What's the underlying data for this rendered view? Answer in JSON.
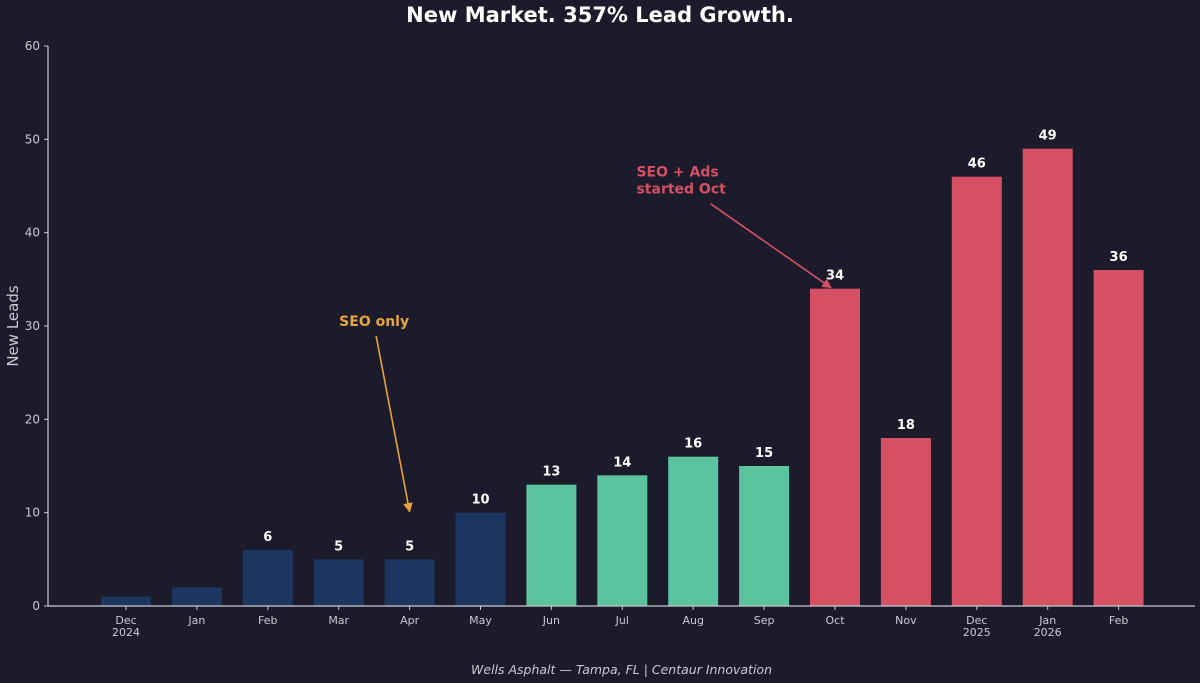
{
  "chart_data": {
    "type": "bar",
    "title": "New Market. 357% Lead Growth.",
    "xlabel": "",
    "ylabel": "New Leads",
    "ylim": [
      0,
      60
    ],
    "yticks": [
      0,
      10,
      20,
      30,
      40,
      50,
      60
    ],
    "grid": false,
    "categories": [
      [
        "Dec",
        "2024"
      ],
      [
        "Jan"
      ],
      [
        "Feb"
      ],
      [
        "Mar"
      ],
      [
        "Apr"
      ],
      [
        "May"
      ],
      [
        "Jun"
      ],
      [
        "Jul"
      ],
      [
        "Aug"
      ],
      [
        "Sep"
      ],
      [
        "Oct"
      ],
      [
        "Nov"
      ],
      [
        "Dec",
        "2025"
      ],
      [
        "Jan",
        "2026"
      ],
      [
        "Feb"
      ]
    ],
    "values": [
      1,
      2,
      6,
      5,
      5,
      10,
      13,
      14,
      16,
      15,
      34,
      18,
      46,
      49,
      36
    ],
    "show_value_label": [
      false,
      false,
      true,
      true,
      true,
      true,
      true,
      true,
      true,
      true,
      true,
      true,
      true,
      true,
      true
    ],
    "phase": [
      "seo",
      "seo",
      "seo",
      "seo",
      "seo",
      "seo",
      "mid",
      "mid",
      "mid",
      "mid",
      "ads",
      "ads",
      "ads",
      "ads",
      "ads"
    ],
    "colors": {
      "seo": "#1d365f",
      "mid": "#5bc49e",
      "ads": "#d65064"
    },
    "annotations": [
      {
        "text": [
          "SEO only"
        ],
        "color": "#e8a33d",
        "target_index": 4,
        "target_value": 10,
        "text_at_value": 30,
        "text_at_index": 3.5
      },
      {
        "text": [
          "SEO + Ads",
          "started Oct"
        ],
        "color": "#d65064",
        "target_index": 10,
        "target_value": 34,
        "text_at_value": 46,
        "text_at_index": 7.2
      }
    ],
    "footer": "Wells Asphalt — Tampa, FL  |  Centaur Innovation"
  },
  "colors": {
    "background": "#1c1b2b",
    "axis": "#c9c9d3"
  }
}
